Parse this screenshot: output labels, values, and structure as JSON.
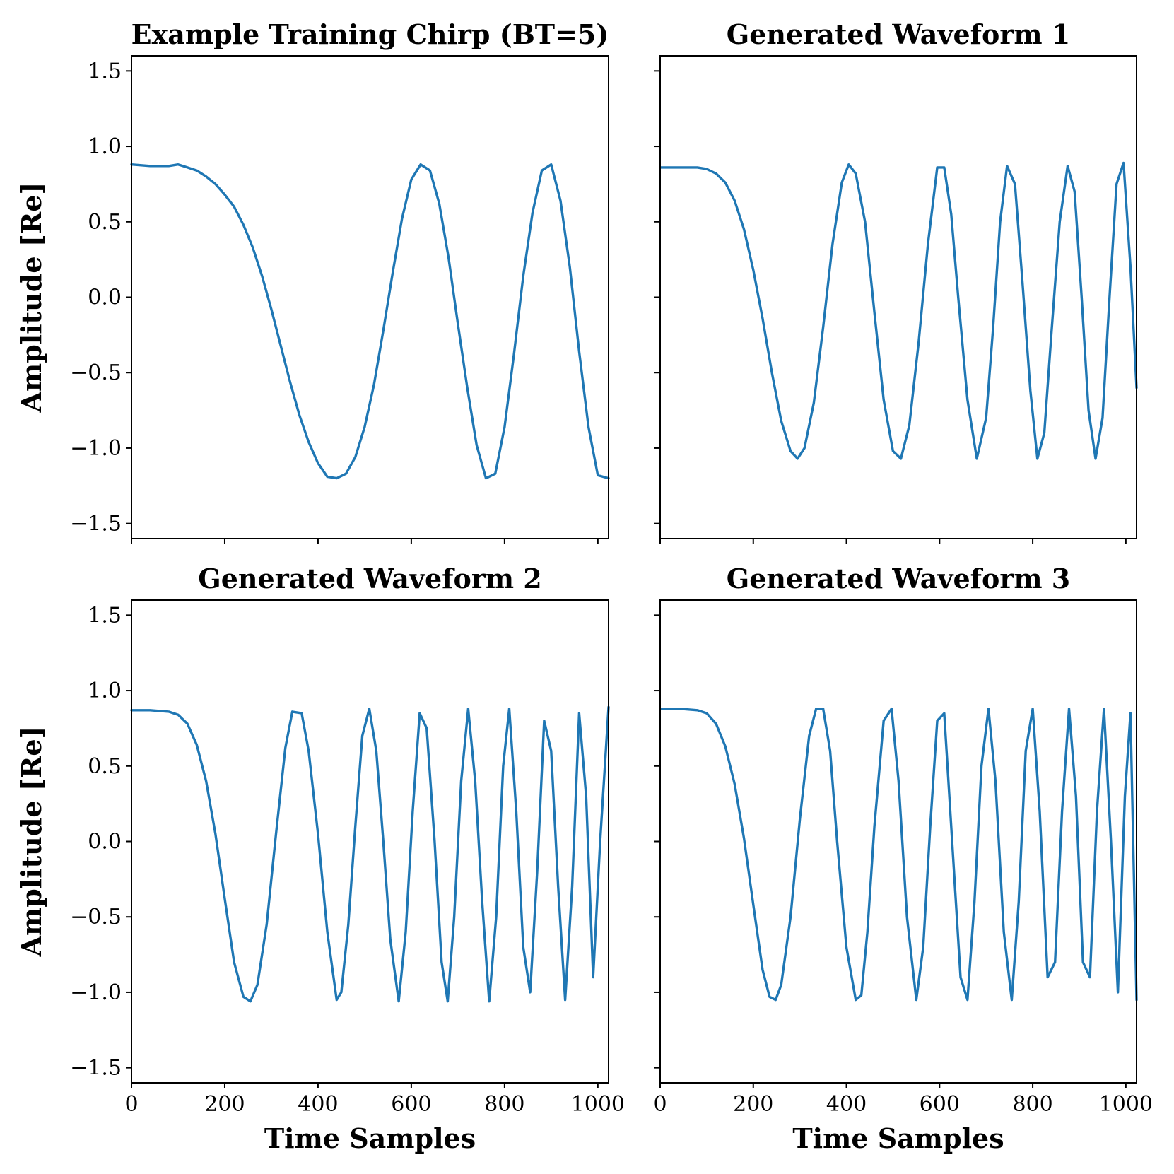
{
  "chart_data": [
    {
      "type": "line",
      "title": "Example Training Chirp (BT=5)",
      "xlabel": "",
      "ylabel": "Amplitude [Re]",
      "xlim": [
        0,
        1023
      ],
      "ylim": [
        -1.6,
        1.6
      ],
      "xticks": [
        0,
        200,
        400,
        600,
        800,
        1000
      ],
      "yticks": [
        -1.5,
        -1.0,
        -0.5,
        0.0,
        0.5,
        1.0,
        1.5
      ],
      "yticklabels": [
        "−1.5",
        "−1.0",
        "−0.5",
        "0.0",
        "0.5",
        "1.0",
        "1.5"
      ],
      "show_xticklabels": false,
      "show_yticklabels": true,
      "color": "#1f77b4",
      "series": [
        {
          "x": [
            0,
            40,
            80,
            100,
            120,
            140,
            160,
            180,
            200,
            220,
            240,
            260,
            280,
            300,
            320,
            340,
            360,
            380,
            400,
            420,
            440,
            460,
            480,
            500,
            520,
            540,
            560,
            580,
            600,
            620,
            640,
            660,
            680,
            700,
            720,
            740,
            760,
            780,
            800,
            820,
            840,
            860,
            880,
            900,
            920,
            940,
            960,
            980,
            1000,
            1023
          ],
          "y": [
            0.88,
            0.87,
            0.87,
            0.88,
            0.86,
            0.84,
            0.8,
            0.75,
            0.68,
            0.6,
            0.48,
            0.33,
            0.14,
            -0.08,
            -0.32,
            -0.56,
            -0.78,
            -0.96,
            -1.1,
            -1.19,
            -1.2,
            -1.17,
            -1.06,
            -0.86,
            -0.58,
            -0.22,
            0.16,
            0.52,
            0.78,
            0.88,
            0.84,
            0.62,
            0.26,
            -0.18,
            -0.6,
            -0.98,
            -1.2,
            -1.17,
            -0.86,
            -0.38,
            0.14,
            0.56,
            0.84,
            0.88,
            0.64,
            0.2,
            -0.36,
            -0.86,
            -1.18,
            -1.2
          ]
        }
      ]
    },
    {
      "type": "line",
      "title": "Generated Waveform 1",
      "xlabel": "",
      "ylabel": "",
      "xlim": [
        0,
        1023
      ],
      "ylim": [
        -1.6,
        1.6
      ],
      "xticks": [
        0,
        200,
        400,
        600,
        800,
        1000
      ],
      "yticks": [
        -1.5,
        -1.0,
        -0.5,
        0.0,
        0.5,
        1.0,
        1.5
      ],
      "show_xticklabels": false,
      "show_yticklabels": false,
      "color": "#1f77b4",
      "series": [
        {
          "x": [
            0,
            40,
            80,
            100,
            120,
            140,
            160,
            180,
            200,
            220,
            240,
            260,
            280,
            295,
            310,
            330,
            350,
            370,
            390,
            405,
            420,
            440,
            460,
            480,
            500,
            517,
            535,
            555,
            575,
            595,
            610,
            625,
            640,
            660,
            680,
            700,
            715,
            730,
            745,
            762,
            778,
            795,
            810,
            825,
            840,
            858,
            875,
            890,
            905,
            920,
            935,
            950,
            965,
            980,
            995,
            1010,
            1023
          ],
          "y": [
            0.86,
            0.86,
            0.86,
            0.85,
            0.82,
            0.76,
            0.64,
            0.45,
            0.18,
            -0.14,
            -0.5,
            -0.82,
            -1.02,
            -1.07,
            -1.0,
            -0.7,
            -0.2,
            0.35,
            0.76,
            0.88,
            0.82,
            0.5,
            -0.1,
            -0.68,
            -1.02,
            -1.07,
            -0.85,
            -0.3,
            0.35,
            0.86,
            0.86,
            0.55,
            0.0,
            -0.68,
            -1.07,
            -0.8,
            -0.2,
            0.5,
            0.87,
            0.75,
            0.1,
            -0.62,
            -1.07,
            -0.9,
            -0.25,
            0.5,
            0.87,
            0.7,
            0.0,
            -0.75,
            -1.07,
            -0.8,
            0.0,
            0.75,
            0.89,
            0.2,
            -0.6
          ]
        }
      ]
    },
    {
      "type": "line",
      "title": "Generated Waveform 2",
      "xlabel": "Time Samples",
      "ylabel": "Amplitude [Re]",
      "xlim": [
        0,
        1023
      ],
      "ylim": [
        -1.6,
        1.6
      ],
      "xticks": [
        0,
        200,
        400,
        600,
        800,
        1000
      ],
      "xticklabels": [
        "0",
        "200",
        "400",
        "600",
        "800",
        "1000"
      ],
      "yticks": [
        -1.5,
        -1.0,
        -0.5,
        0.0,
        0.5,
        1.0,
        1.5
      ],
      "yticklabels": [
        "−1.5",
        "−1.0",
        "−0.5",
        "0.0",
        "0.5",
        "1.0",
        "1.5"
      ],
      "show_xticklabels": true,
      "show_yticklabels": true,
      "color": "#1f77b4",
      "series": [
        {
          "x": [
            0,
            40,
            80,
            100,
            120,
            140,
            160,
            180,
            200,
            220,
            240,
            255,
            270,
            290,
            310,
            330,
            345,
            365,
            380,
            400,
            420,
            440,
            450,
            465,
            480,
            495,
            510,
            525,
            540,
            555,
            573,
            588,
            603,
            618,
            633,
            650,
            665,
            678,
            692,
            707,
            722,
            737,
            752,
            767,
            782,
            797,
            810,
            825,
            840,
            855,
            870,
            885,
            900,
            915,
            930,
            945,
            960,
            975,
            990,
            1005,
            1023
          ],
          "y": [
            0.87,
            0.87,
            0.86,
            0.84,
            0.78,
            0.64,
            0.4,
            0.05,
            -0.38,
            -0.8,
            -1.03,
            -1.06,
            -0.95,
            -0.55,
            0.05,
            0.62,
            0.86,
            0.85,
            0.6,
            0.05,
            -0.6,
            -1.05,
            -1.0,
            -0.55,
            0.1,
            0.7,
            0.88,
            0.6,
            0.0,
            -0.65,
            -1.06,
            -0.6,
            0.2,
            0.85,
            0.75,
            0.0,
            -0.8,
            -1.06,
            -0.5,
            0.4,
            0.88,
            0.4,
            -0.4,
            -1.06,
            -0.5,
            0.5,
            0.88,
            0.2,
            -0.7,
            -1.0,
            -0.2,
            0.8,
            0.6,
            -0.3,
            -1.05,
            -0.3,
            0.85,
            0.3,
            -0.9,
            0.0,
            0.89
          ]
        }
      ]
    },
    {
      "type": "line",
      "title": "Generated Waveform 3",
      "xlabel": "Time Samples",
      "ylabel": "",
      "xlim": [
        0,
        1023
      ],
      "ylim": [
        -1.6,
        1.6
      ],
      "xticks": [
        0,
        200,
        400,
        600,
        800,
        1000
      ],
      "xticklabels": [
        "0",
        "200",
        "400",
        "600",
        "800",
        "1000"
      ],
      "yticks": [
        -1.5,
        -1.0,
        -0.5,
        0.0,
        0.5,
        1.0,
        1.5
      ],
      "show_xticklabels": true,
      "show_yticklabels": false,
      "color": "#1f77b4",
      "series": [
        {
          "x": [
            0,
            40,
            80,
            100,
            120,
            140,
            160,
            180,
            200,
            220,
            235,
            248,
            260,
            280,
            300,
            320,
            335,
            350,
            365,
            380,
            400,
            420,
            432,
            445,
            460,
            480,
            497,
            512,
            530,
            550,
            565,
            580,
            595,
            610,
            627,
            645,
            660,
            675,
            690,
            705,
            720,
            738,
            755,
            770,
            785,
            800,
            815,
            832,
            848,
            863,
            878,
            893,
            908,
            923,
            938,
            953,
            968,
            983,
            998,
            1010,
            1023
          ],
          "y": [
            0.88,
            0.88,
            0.87,
            0.85,
            0.78,
            0.63,
            0.38,
            0.02,
            -0.42,
            -0.85,
            -1.03,
            -1.05,
            -0.95,
            -0.5,
            0.15,
            0.7,
            0.88,
            0.88,
            0.6,
            0.0,
            -0.7,
            -1.05,
            -1.02,
            -0.6,
            0.1,
            0.8,
            0.88,
            0.4,
            -0.5,
            -1.05,
            -0.7,
            0.1,
            0.8,
            0.85,
            0.0,
            -0.9,
            -1.05,
            -0.4,
            0.5,
            0.88,
            0.4,
            -0.6,
            -1.05,
            -0.4,
            0.6,
            0.88,
            0.2,
            -0.9,
            -0.8,
            0.2,
            0.88,
            0.3,
            -0.8,
            -0.9,
            0.2,
            0.88,
            0.0,
            -1.0,
            0.3,
            0.85,
            -1.05
          ]
        }
      ]
    }
  ]
}
